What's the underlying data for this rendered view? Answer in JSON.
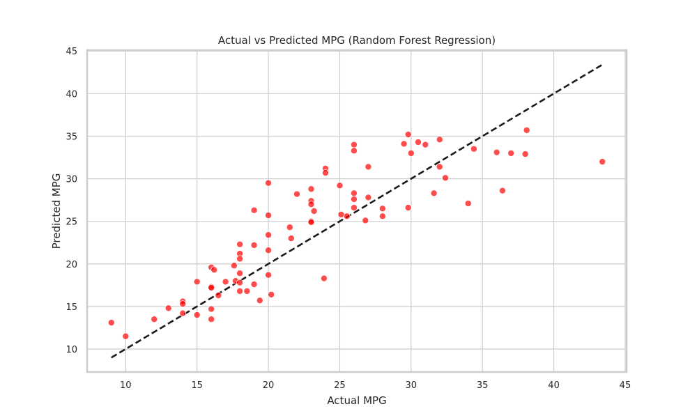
{
  "chart_data": {
    "type": "scatter",
    "title": "Actual vs Predicted MPG (Random Forest Regression)",
    "xlabel": "Actual MPG",
    "ylabel": "Predicted MPG",
    "xlim": [
      7.3,
      45.1
    ],
    "ylim": [
      7.3,
      45.1
    ],
    "xticks": [
      10,
      15,
      20,
      25,
      30,
      35,
      40,
      45
    ],
    "yticks": [
      10,
      15,
      20,
      25,
      30,
      35,
      40,
      45
    ],
    "grid": true,
    "point_color": "#ff0000",
    "reference_line": {
      "style": "dashed",
      "color": "#1a1a1a",
      "from": [
        9.0,
        9.0
      ],
      "to": [
        43.4,
        43.4
      ]
    },
    "points": [
      [
        9.0,
        13.1
      ],
      [
        10.0,
        11.5
      ],
      [
        12.0,
        13.5
      ],
      [
        13.0,
        14.8
      ],
      [
        14.0,
        15.6
      ],
      [
        14.0,
        15.3
      ],
      [
        14.0,
        14.2
      ],
      [
        15.0,
        17.9
      ],
      [
        15.0,
        14.0
      ],
      [
        16.0,
        19.6
      ],
      [
        16.0,
        17.3
      ],
      [
        16.0,
        17.2
      ],
      [
        16.0,
        14.7
      ],
      [
        16.0,
        13.5
      ],
      [
        16.2,
        19.3
      ],
      [
        16.5,
        16.3
      ],
      [
        17.0,
        17.9
      ],
      [
        17.6,
        19.8
      ],
      [
        17.7,
        18.0
      ],
      [
        18.0,
        22.3
      ],
      [
        18.0,
        21.2
      ],
      [
        18.0,
        20.6
      ],
      [
        18.0,
        18.9
      ],
      [
        18.0,
        17.8
      ],
      [
        18.0,
        16.8
      ],
      [
        18.5,
        16.8
      ],
      [
        19.0,
        26.3
      ],
      [
        19.0,
        22.2
      ],
      [
        19.0,
        17.6
      ],
      [
        19.4,
        15.7
      ],
      [
        20.0,
        29.5
      ],
      [
        20.0,
        25.7
      ],
      [
        20.0,
        23.4
      ],
      [
        20.0,
        21.6
      ],
      [
        20.0,
        18.7
      ],
      [
        20.2,
        16.4
      ],
      [
        21.5,
        24.3
      ],
      [
        21.6,
        23.0
      ],
      [
        22.0,
        28.2
      ],
      [
        23.0,
        28.8
      ],
      [
        23.0,
        27.4
      ],
      [
        23.0,
        27.0
      ],
      [
        23.0,
        25.0
      ],
      [
        23.0,
        24.9
      ],
      [
        23.2,
        26.2
      ],
      [
        23.9,
        18.3
      ],
      [
        24.0,
        31.2
      ],
      [
        24.0,
        30.7
      ],
      [
        25.0,
        29.2
      ],
      [
        25.1,
        25.8
      ],
      [
        25.5,
        25.6
      ],
      [
        26.0,
        34.0
      ],
      [
        26.0,
        33.3
      ],
      [
        26.0,
        28.3
      ],
      [
        26.0,
        27.6
      ],
      [
        26.0,
        26.6
      ],
      [
        26.8,
        25.1
      ],
      [
        27.0,
        31.4
      ],
      [
        27.0,
        27.8
      ],
      [
        28.0,
        26.5
      ],
      [
        28.0,
        25.6
      ],
      [
        29.5,
        34.1
      ],
      [
        29.8,
        35.2
      ],
      [
        29.8,
        26.6
      ],
      [
        30.0,
        33.0
      ],
      [
        30.5,
        34.3
      ],
      [
        31.0,
        34.0
      ],
      [
        31.6,
        28.3
      ],
      [
        32.0,
        34.6
      ],
      [
        32.0,
        31.4
      ],
      [
        32.4,
        30.1
      ],
      [
        34.0,
        27.1
      ],
      [
        34.4,
        33.5
      ],
      [
        36.0,
        33.1
      ],
      [
        36.4,
        28.6
      ],
      [
        37.0,
        33.0
      ],
      [
        38.0,
        32.9
      ],
      [
        38.1,
        35.7
      ],
      [
        43.4,
        32.0
      ]
    ]
  }
}
